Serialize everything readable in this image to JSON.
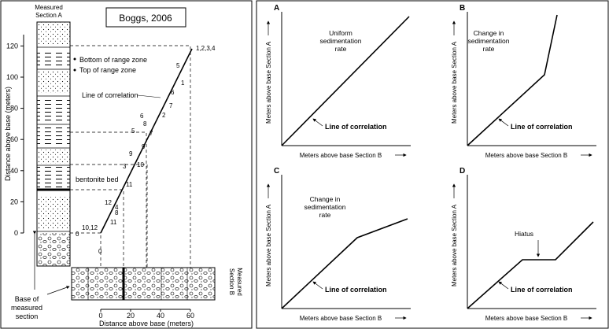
{
  "left_panel": {
    "source_label": "Boggs, 2006",
    "section_a_title": [
      "Measured",
      "Section A"
    ],
    "section_b_title": [
      "Measured",
      "Section B"
    ],
    "y_axis_label": "Distance above base (meters)",
    "x_axis_label": "Distance above base (meters)",
    "y_ticks": [
      "0",
      "20",
      "40",
      "60",
      "80",
      "100",
      "120"
    ],
    "x_ticks": [
      "0",
      "20",
      "40",
      "60"
    ],
    "legend_bottom": "Bottom of range zone",
    "legend_top": "Top of range zone",
    "line_of_correlation": "Line of correlation",
    "bentonite_bed": "bentonite bed",
    "base_label": [
      "Base of",
      "measured",
      "section"
    ],
    "zone_labels": {
      "top": "1,2,3,4",
      "n5a": "5",
      "n1": "1",
      "n6a": "6",
      "n7a": "7",
      "n2": "2",
      "n6b": "6",
      "n8": "8",
      "n5b": "5",
      "n7b": "7",
      "n9a": "9",
      "n9b": "9",
      "n3": "3",
      "n10": "10",
      "n11a": "11",
      "n12": "12",
      "n4": "4",
      "n8b": "8",
      "n11b": "11",
      "n0": "0",
      "n1012": "10,12",
      "n0b": "0"
    }
  },
  "panels": [
    {
      "letter": "A",
      "ylabel": "Meters above base Section A",
      "xlabel": "Meters above base Section B",
      "corr": "Line of correlation",
      "note": [
        "Uniform",
        "sedimentation",
        "rate"
      ]
    },
    {
      "letter": "B",
      "ylabel": "Meters above base Section A",
      "xlabel": "Meters above base Section B",
      "corr": "Line of correlation",
      "note": [
        "Change in",
        "sedimentation",
        "rate"
      ]
    },
    {
      "letter": "C",
      "ylabel": "Meters above base Section A",
      "xlabel": "Meters above base Section B",
      "corr": "Line of correlation",
      "note": [
        "Change in",
        "sedimentation",
        "rate"
      ]
    },
    {
      "letter": "D",
      "ylabel": "Meters above base Section A",
      "xlabel": "Meters above base Section B",
      "corr": "Line of correlation",
      "note": [
        "Hiatus"
      ]
    }
  ]
}
